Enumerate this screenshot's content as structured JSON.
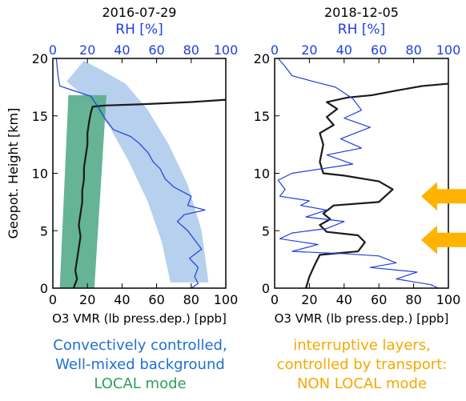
{
  "chart_data": [
    {
      "type": "line",
      "title": "2016-07-29",
      "ylabel": "Geopot. Height [km]",
      "xlabel": "O3 VMR (lb press.dep.) [ppb]",
      "x2label": "RH [%]",
      "xlim": [
        0,
        100
      ],
      "ylim": [
        0,
        20
      ],
      "xticks": [
        "0",
        "20",
        "40",
        "60",
        "80",
        "100"
      ],
      "x2ticks": [
        "0",
        "20",
        "40",
        "60",
        "80",
        "100"
      ],
      "yticks": [
        "0",
        "5",
        "10",
        "15",
        "20"
      ],
      "bands": [
        {
          "color": "#a9c8ea",
          "polygon": [
            [
              18,
              19.8
            ],
            [
              28,
              19.0
            ],
            [
              42,
              17.8
            ],
            [
              55,
              15.5
            ],
            [
              67,
              12.5
            ],
            [
              78,
              9.0
            ],
            [
              86,
              5.0
            ],
            [
              90,
              0.5
            ],
            [
              68,
              0.5
            ],
            [
              63,
              4.0
            ],
            [
              55,
              7.5
            ],
            [
              44,
              11.0
            ],
            [
              33,
              14.0
            ],
            [
              20,
              16.5
            ],
            [
              8,
              18.0
            ]
          ]
        },
        {
          "color": "#5cb08f",
          "polygon": [
            [
              9,
              16.8
            ],
            [
              31,
              16.8
            ],
            [
              24,
              0
            ],
            [
              4,
              0
            ]
          ]
        }
      ],
      "series": [
        {
          "color": "#1a1a1a",
          "axis": "O3",
          "points": [
            [
              12,
              0
            ],
            [
              14,
              0.8
            ],
            [
              13,
              1.5
            ],
            [
              14,
              2.5
            ],
            [
              15,
              3.5
            ],
            [
              16,
              4.5
            ],
            [
              15,
              5.5
            ],
            [
              16,
              6.5
            ],
            [
              17,
              7.5
            ],
            [
              17,
              8.5
            ],
            [
              18,
              9.5
            ],
            [
              18,
              10.5
            ],
            [
              19,
              11.5
            ],
            [
              20,
              12.5
            ],
            [
              20,
              13.5
            ],
            [
              21,
              14.5
            ],
            [
              22,
              15.3
            ],
            [
              23,
              15.8
            ],
            [
              30,
              15.9
            ],
            [
              50,
              16.0
            ],
            [
              80,
              16.2
            ],
            [
              100,
              16.4
            ]
          ]
        },
        {
          "color": "#1f3fe0",
          "axis": "RH",
          "points": [
            [
              2,
              20
            ],
            [
              3,
              18.5
            ],
            [
              4,
              17.6
            ],
            [
              10,
              17.3
            ],
            [
              22,
              16.7
            ],
            [
              26,
              15.8
            ],
            [
              30,
              14.8
            ],
            [
              35,
              13.8
            ],
            [
              45,
              13.2
            ],
            [
              50,
              12.6
            ],
            [
              55,
              11.8
            ],
            [
              58,
              11.0
            ],
            [
              62,
              10.4
            ],
            [
              65,
              9.5
            ],
            [
              70,
              8.8
            ],
            [
              80,
              8.0
            ],
            [
              78,
              7.2
            ],
            [
              88,
              6.8
            ],
            [
              76,
              6.4
            ],
            [
              72,
              5.8
            ],
            [
              78,
              5.0
            ],
            [
              82,
              4.2
            ],
            [
              86,
              3.4
            ],
            [
              79,
              2.6
            ],
            [
              84,
              1.8
            ],
            [
              82,
              1.0
            ],
            [
              84,
              0.4
            ],
            [
              80,
              0
            ]
          ]
        }
      ]
    },
    {
      "type": "line",
      "title": "2018-12-05",
      "xlabel": "O3 VMR (lb press.dep.) [ppb]",
      "x2label": "RH [%]",
      "xlim": [
        0,
        100
      ],
      "ylim": [
        0,
        20
      ],
      "xticks": [
        "0",
        "20",
        "40",
        "60",
        "80",
        "100"
      ],
      "x2ticks": [
        "0",
        "20",
        "40",
        "60",
        "80",
        "100"
      ],
      "yticks": [
        "0",
        "5",
        "10",
        "15",
        "20"
      ],
      "arrows_at_km": [
        8.0,
        4.2
      ],
      "series": [
        {
          "color": "#1a1a1a",
          "axis": "O3",
          "points": [
            [
              18,
              0
            ],
            [
              20,
              1.0
            ],
            [
              23,
              2.0
            ],
            [
              26,
              2.9
            ],
            [
              48,
              3.2
            ],
            [
              52,
              4.0
            ],
            [
              48,
              4.6
            ],
            [
              30,
              4.9
            ],
            [
              26,
              5.5
            ],
            [
              32,
              6.0
            ],
            [
              28,
              6.5
            ],
            [
              34,
              7.2
            ],
            [
              60,
              7.5
            ],
            [
              68,
              8.6
            ],
            [
              60,
              9.3
            ],
            [
              40,
              9.8
            ],
            [
              28,
              10.0
            ],
            [
              26,
              11.0
            ],
            [
              28,
              12.5
            ],
            [
              26,
              13.5
            ],
            [
              34,
              14.2
            ],
            [
              30,
              14.9
            ],
            [
              36,
              15.6
            ],
            [
              30,
              16.2
            ],
            [
              42,
              16.6
            ],
            [
              56,
              16.8
            ],
            [
              70,
              17.2
            ],
            [
              85,
              17.6
            ],
            [
              100,
              17.8
            ]
          ]
        },
        {
          "color": "#1f3fe0",
          "axis": "RH",
          "points": [
            [
              2,
              20
            ],
            [
              6,
              19.3
            ],
            [
              10,
              18.5
            ],
            [
              22,
              18.0
            ],
            [
              35,
              17.5
            ],
            [
              45,
              16.5
            ],
            [
              50,
              15.5
            ],
            [
              40,
              14.8
            ],
            [
              55,
              14.0
            ],
            [
              38,
              13.0
            ],
            [
              50,
              12.2
            ],
            [
              30,
              11.6
            ],
            [
              45,
              10.8
            ],
            [
              10,
              10.0
            ],
            [
              2,
              9.4
            ],
            [
              6,
              8.6
            ],
            [
              3,
              8.0
            ],
            [
              20,
              7.6
            ],
            [
              15,
              7.2
            ],
            [
              30,
              6.8
            ],
            [
              18,
              6.2
            ],
            [
              40,
              5.8
            ],
            [
              30,
              5.2
            ],
            [
              10,
              4.8
            ],
            [
              3,
              4.3
            ],
            [
              25,
              3.8
            ],
            [
              10,
              3.2
            ],
            [
              40,
              3.0
            ],
            [
              60,
              2.8
            ],
            [
              70,
              2.2
            ],
            [
              55,
              1.8
            ],
            [
              82,
              1.4
            ],
            [
              70,
              0.8
            ],
            [
              90,
              0.3
            ],
            [
              94,
              0
            ]
          ]
        }
      ]
    }
  ],
  "captions": {
    "left_line1": "Convectively controlled,",
    "left_line2": "Well-mixed background",
    "left_mode": "LOCAL mode",
    "right_line1": "interruptive layers,",
    "right_line2": "controlled by transport:",
    "right_mode": "NON LOCAL mode"
  },
  "colors": {
    "rh": "#1f3fe0",
    "o3": "#1a1a1a",
    "band_blue": "#a9c8ea",
    "band_green": "#5cb08f",
    "arrow": "#ffb300",
    "caption_blue": "#1f6fd1",
    "caption_green": "#2e9e5e",
    "caption_orange": "#f5a800"
  }
}
